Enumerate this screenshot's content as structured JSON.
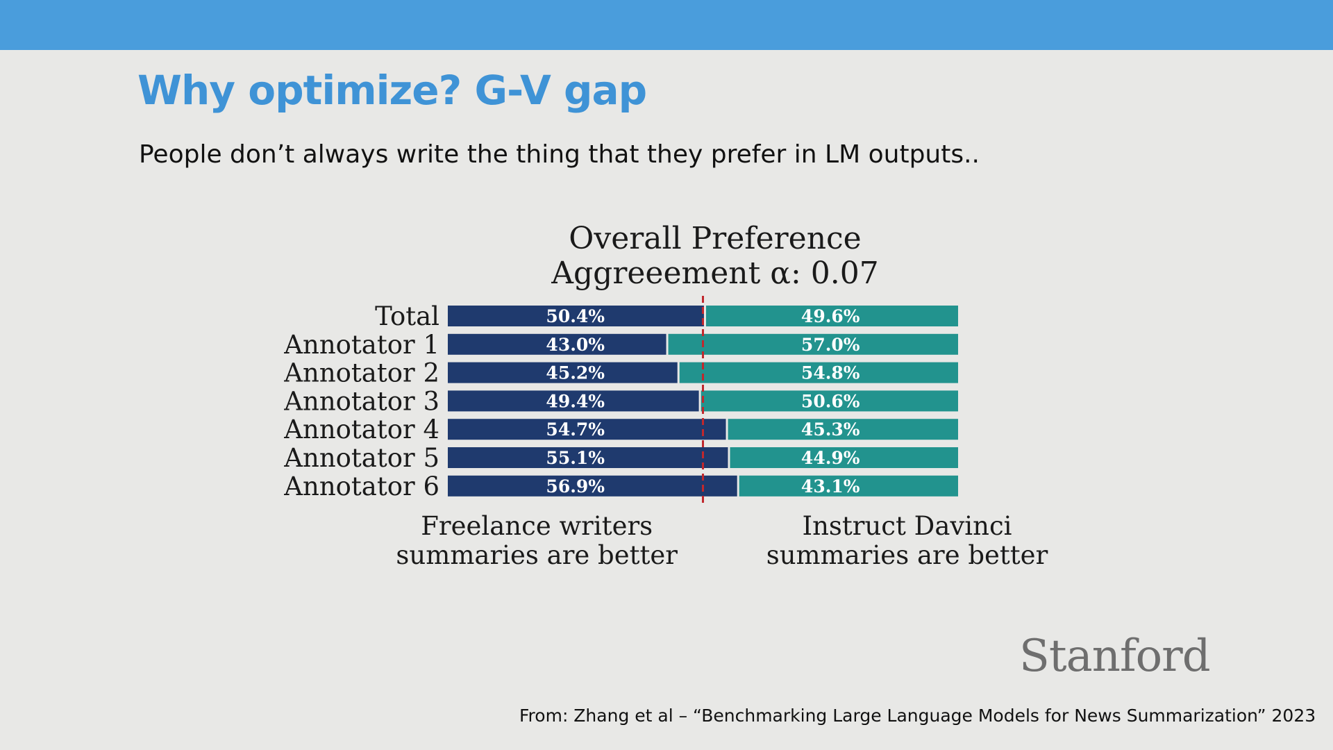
{
  "slide": {
    "title": "Why optimize? G-V gap",
    "subtitle": "People don’t always write the thing that they prefer in LM outputs..",
    "logo_text": "Stanford",
    "citation": "From: Zhang et al – “Benchmarking Large Language Models for News Summarization” 2023"
  },
  "colors": {
    "header_bar": "#4a9ddc",
    "title": "#3f93d6",
    "left_bar": "#1f3a6e",
    "right_bar": "#22938e",
    "divider": "#c0282d"
  },
  "chart_data": {
    "type": "bar",
    "orientation": "horizontal-stacked",
    "title_line1": "Overall Preference",
    "title_line2": "Aggreeement α: 0.07",
    "categories": [
      "Total",
      "Annotator 1",
      "Annotator 2",
      "Annotator 3",
      "Annotator 4",
      "Annotator 5",
      "Annotator 6"
    ],
    "series": [
      {
        "values": [
          50.4,
          43.0,
          45.2,
          49.4,
          54.7,
          55.1,
          56.9
        ],
        "labels": [
          "50.4%",
          "43.0%",
          "45.2%",
          "49.4%",
          "54.7%",
          "55.1%",
          "56.9%"
        ]
      },
      {
        "values": [
          49.6,
          57.0,
          54.8,
          50.6,
          45.3,
          44.9,
          43.1
        ],
        "labels": [
          "49.6%",
          "57.0%",
          "54.8%",
          "50.6%",
          "45.3%",
          "44.9%",
          "43.1%"
        ]
      }
    ],
    "xlim": [
      0,
      100
    ],
    "reference_line": 50,
    "left_caption": [
      "Freelance writers",
      "summaries are better"
    ],
    "right_caption": [
      "Instruct Davinci",
      "summaries are better"
    ]
  }
}
